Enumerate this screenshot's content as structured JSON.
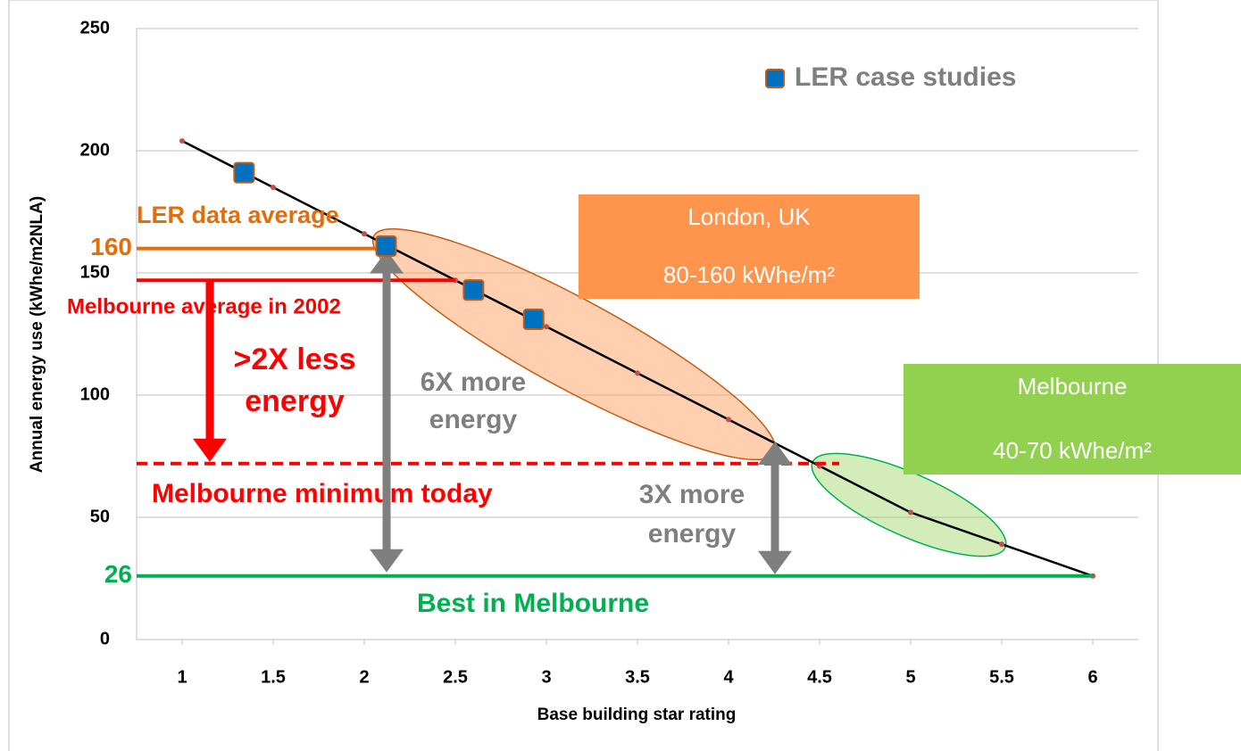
{
  "chart_data": {
    "type": "scatter",
    "x_label": "Base building star rating",
    "y_label": "Annual energy use (kWhe/m2NLA)",
    "xlim": [
      0.75,
      6.25
    ],
    "xticks": [
      1,
      1.5,
      2,
      2.5,
      3,
      3.5,
      4,
      4.5,
      5,
      5.5,
      6
    ],
    "ylim": [
      0,
      250
    ],
    "yticks": [
      0,
      50,
      100,
      150,
      200,
      250
    ],
    "grid": true,
    "legend": "upper right",
    "series": [
      {
        "name": "LER case studies",
        "color": "#0070c0",
        "x": [
          1.34,
          2.12,
          2.6,
          2.93
        ],
        "values": [
          191,
          161,
          143,
          131
        ]
      }
    ],
    "trend": {
      "color": "#000000",
      "point_color": "#c0504d",
      "x": [
        1,
        1.5,
        2,
        2.5,
        3,
        3.5,
        4,
        4.5,
        5,
        5.5,
        6
      ],
      "values": [
        204,
        185,
        166,
        147,
        128,
        109,
        90,
        71,
        52,
        39,
        26
      ]
    },
    "reference_lines": [
      {
        "label": "LER data average",
        "value": 160,
        "color": "#e46c0a"
      },
      {
        "label": "Melbourne average in 2002",
        "value": 147,
        "color": "#ff0000"
      },
      {
        "label": "Melbourne minimum today",
        "value": 72,
        "color": "#ff0000",
        "dashed": true
      },
      {
        "label": "Best in Melbourne",
        "value": 26,
        "color": "#00b050"
      }
    ],
    "arrows": [
      {
        "label": [
          ">2X less",
          "energy"
        ],
        "color": "#ff0000"
      },
      {
        "label": [
          "6X more",
          "energy"
        ],
        "color": "#7f7f7f"
      },
      {
        "label": [
          "3X more",
          "energy"
        ],
        "color": "#7f7f7f"
      }
    ],
    "regions": [
      {
        "title": "London, UK",
        "range": "80-160 kWhe/m²",
        "color": "#ff944d"
      },
      {
        "title": "Melbourne",
        "range": "40-70 kWhe/m²",
        "color": "#92d050"
      }
    ]
  }
}
